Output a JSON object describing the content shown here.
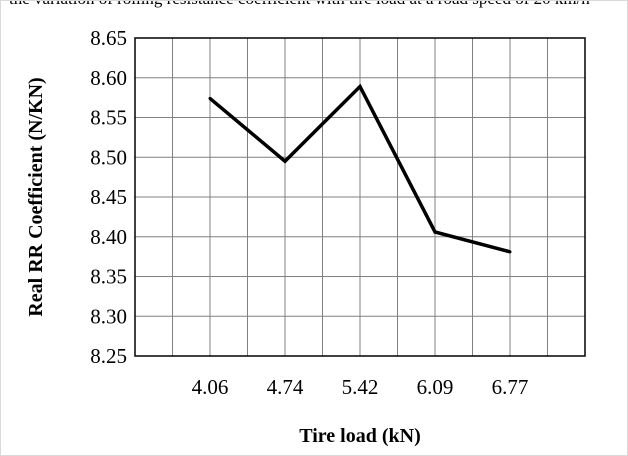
{
  "header": {
    "cropped_text": "the variation of rolling resistance coefficient with tire load at a road speed of 20 km/h"
  },
  "chart_data": {
    "type": "line",
    "categories": [
      "4.06",
      "4.74",
      "5.42",
      "6.09",
      "6.77"
    ],
    "series": [
      {
        "values": [
          8.574,
          8.495,
          8.589,
          8.406,
          8.381
        ]
      }
    ],
    "title": "",
    "xlabel": "Tire load (kN)",
    "ylabel": "Real RR Coefficient (N/KN)",
    "ylim": [
      8.25,
      8.65
    ],
    "yticks": [
      "8.25",
      "8.30",
      "8.35",
      "8.40",
      "8.45",
      "8.50",
      "8.55",
      "8.60",
      "8.65"
    ],
    "grid": true,
    "legend": "none",
    "line_color": "#000000",
    "grid_color": "#808080"
  }
}
